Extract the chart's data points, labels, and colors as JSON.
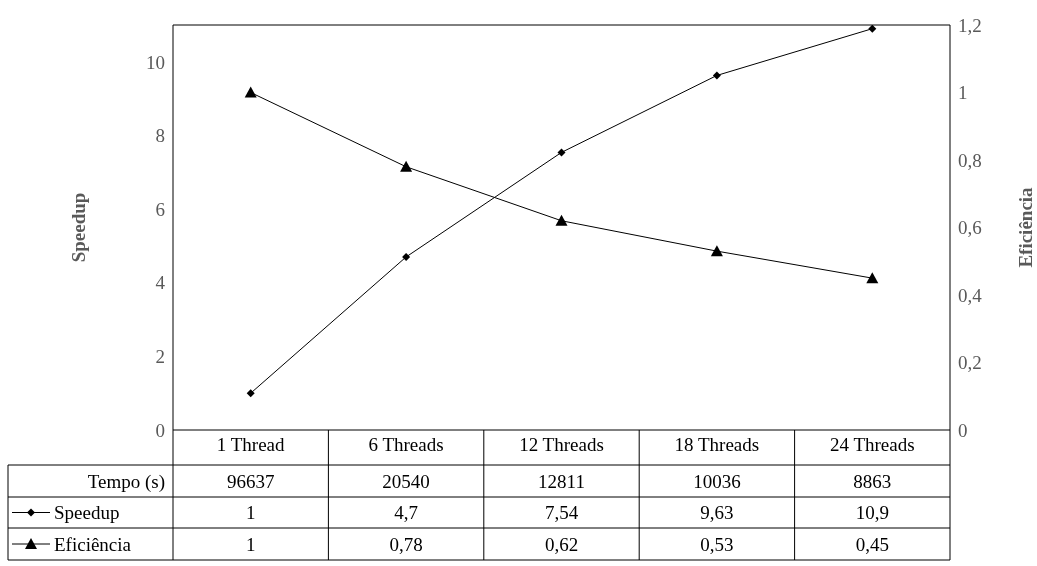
{
  "chart_data": {
    "type": "line",
    "categories": [
      "1 Thread",
      "6 Threads",
      "12 Threads",
      "18 Threads",
      "24 Threads"
    ],
    "ylabel": "Speedup",
    "y2label": "Eficiência",
    "ylim": [
      0,
      11
    ],
    "yticks": [
      0,
      2,
      4,
      6,
      8,
      10
    ],
    "y2lim": [
      0,
      1.2
    ],
    "y2ticks": [
      0,
      {
        "value": 0.2,
        "label": "0,2"
      },
      {
        "value": 0.4,
        "label": "0,4"
      },
      {
        "value": 0.6,
        "label": "0,6"
      },
      {
        "value": 0.8,
        "label": "0,8"
      },
      1,
      {
        "value": 1.2,
        "label": "1,2"
      }
    ],
    "grid": false,
    "legend": "bottom",
    "line_style": "solid",
    "series": [
      {
        "name": "Speedup",
        "color": "#000000",
        "marker": "diamond",
        "values": [
          1,
          4.7,
          7.54,
          9.63,
          10.9
        ],
        "value_labels": [
          "1",
          "4,7",
          "7,54",
          "9,63",
          "10,9"
        ]
      },
      {
        "name": "Eficiência",
        "color": "#000000",
        "marker": "triangle",
        "axis": "y2",
        "values": [
          1,
          0.78,
          0.62,
          0.53,
          0.45
        ],
        "value_labels": [
          "1",
          "0,78",
          "0,62",
          "0,53",
          "0,45"
        ]
      }
    ],
    "annotations": [
      "Tempo (s)",
      "96637",
      "20540",
      "12811",
      "10036",
      "8863"
    ]
  }
}
